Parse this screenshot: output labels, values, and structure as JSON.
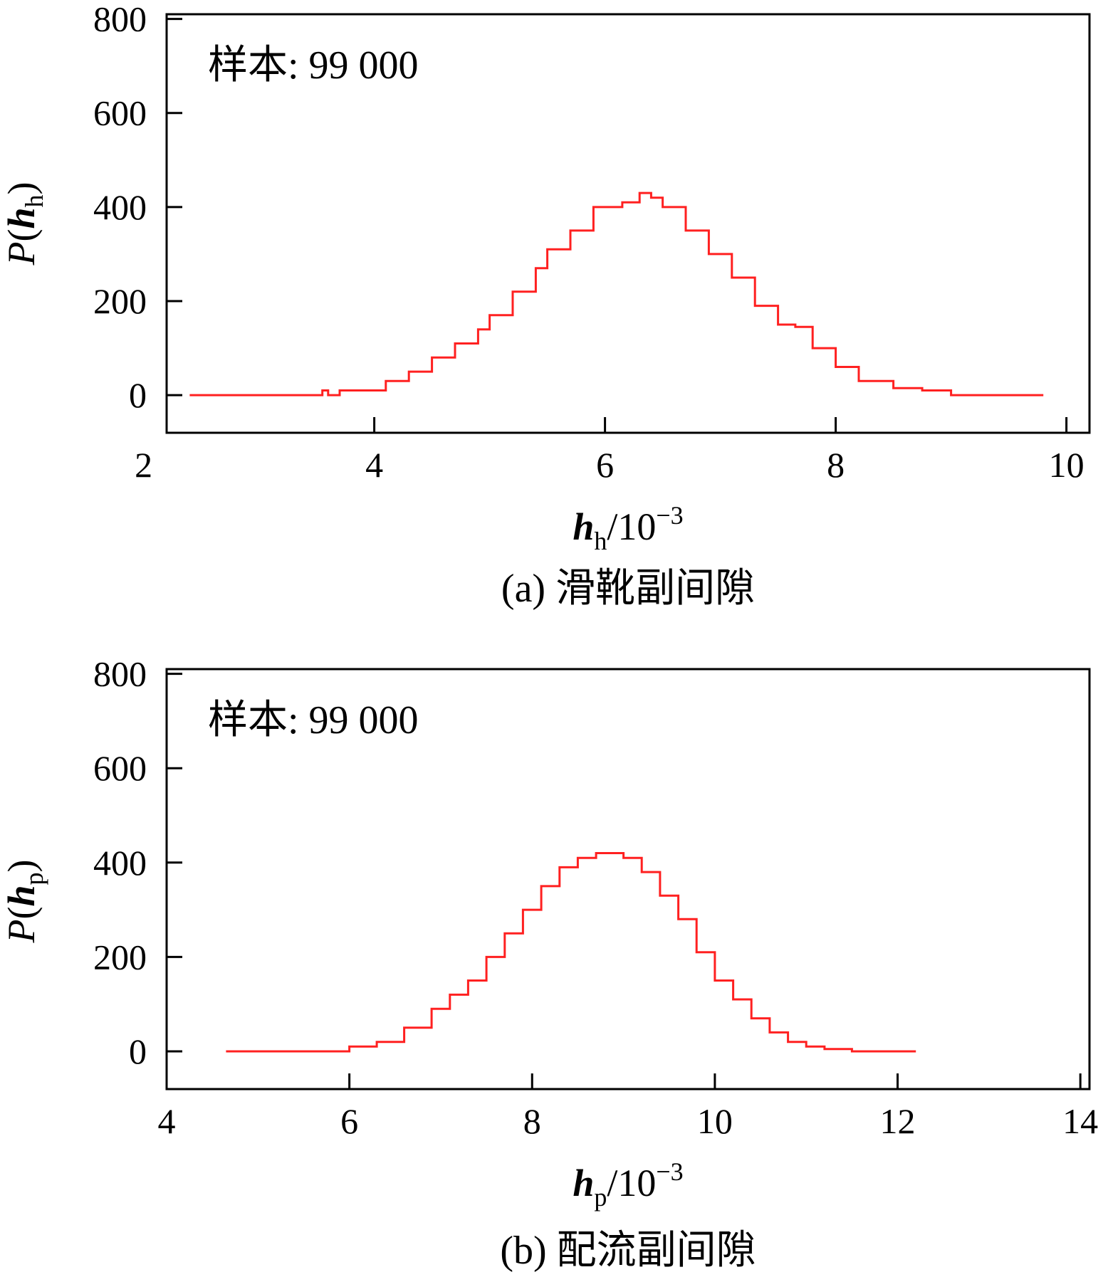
{
  "colors": {
    "series": "#ff2020",
    "axis": "#000000"
  },
  "chart_data": [
    {
      "type": "line",
      "annotation": "样本: 99 000",
      "caption": "(a) 滑靴副间隙",
      "ylabel": {
        "main": "P(",
        "var": "h",
        "sub": "h",
        "close": ")"
      },
      "xlabel": {
        "var": "h",
        "sub": "h",
        "unit": "/10",
        "exp": "−3"
      },
      "xlim": [
        2.2,
        10.2
      ],
      "ylim": [
        -80,
        810
      ],
      "xticks": [
        2,
        4,
        6,
        8,
        10
      ],
      "xtick_labels": [
        "2",
        "4",
        "6",
        "8",
        "10"
      ],
      "yticks": [
        0,
        200,
        400,
        600,
        800
      ],
      "ytick_labels": [
        "0",
        "200",
        "400",
        "600",
        "800"
      ],
      "series": [
        {
          "x": [
            2.4,
            3.5,
            3.55,
            3.6,
            3.7,
            3.9,
            4.1,
            4.3,
            4.5,
            4.7,
            4.9,
            5.0,
            5.2,
            5.4,
            5.5,
            5.7,
            5.9,
            6.0,
            6.15,
            6.3,
            6.4,
            6.5,
            6.7,
            6.9,
            7.1,
            7.3,
            7.5,
            7.65,
            7.8,
            8.0,
            8.2,
            8.5,
            8.75,
            9.0,
            9.5,
            9.8
          ],
          "y": [
            0,
            0,
            10,
            0,
            10,
            10,
            30,
            50,
            80,
            110,
            140,
            170,
            220,
            270,
            310,
            350,
            400,
            400,
            410,
            430,
            420,
            400,
            350,
            300,
            250,
            190,
            150,
            145,
            100,
            60,
            30,
            15,
            10,
            0,
            0,
            0
          ]
        }
      ]
    },
    {
      "type": "line",
      "annotation": "样本: 99 000",
      "caption": "(b) 配流副间隙",
      "ylabel": {
        "main": "P(",
        "var": "h",
        "sub": "p",
        "close": ")"
      },
      "xlabel": {
        "var": "h",
        "sub": "p",
        "unit": "/10",
        "exp": "−3"
      },
      "xlim": [
        4.0,
        14.1
      ],
      "ylim": [
        -80,
        810
      ],
      "xticks": [
        4,
        6,
        8,
        10,
        12,
        14
      ],
      "xtick_labels": [
        "4",
        "6",
        "8",
        "10",
        "12",
        "14"
      ],
      "yticks": [
        0,
        200,
        400,
        600,
        800
      ],
      "ytick_labels": [
        "0",
        "200",
        "400",
        "600",
        "800"
      ],
      "series": [
        {
          "x": [
            4.65,
            5.9,
            6.0,
            6.3,
            6.6,
            6.9,
            7.1,
            7.3,
            7.5,
            7.7,
            7.9,
            8.1,
            8.3,
            8.5,
            8.7,
            8.8,
            9.0,
            9.2,
            9.4,
            9.6,
            9.8,
            10.0,
            10.2,
            10.4,
            10.6,
            10.8,
            11.0,
            11.2,
            11.5,
            12.2
          ],
          "y": [
            0,
            0,
            10,
            20,
            50,
            90,
            120,
            150,
            200,
            250,
            300,
            350,
            390,
            410,
            420,
            420,
            410,
            380,
            330,
            280,
            210,
            150,
            110,
            70,
            40,
            20,
            10,
            5,
            0,
            0
          ]
        }
      ]
    }
  ]
}
